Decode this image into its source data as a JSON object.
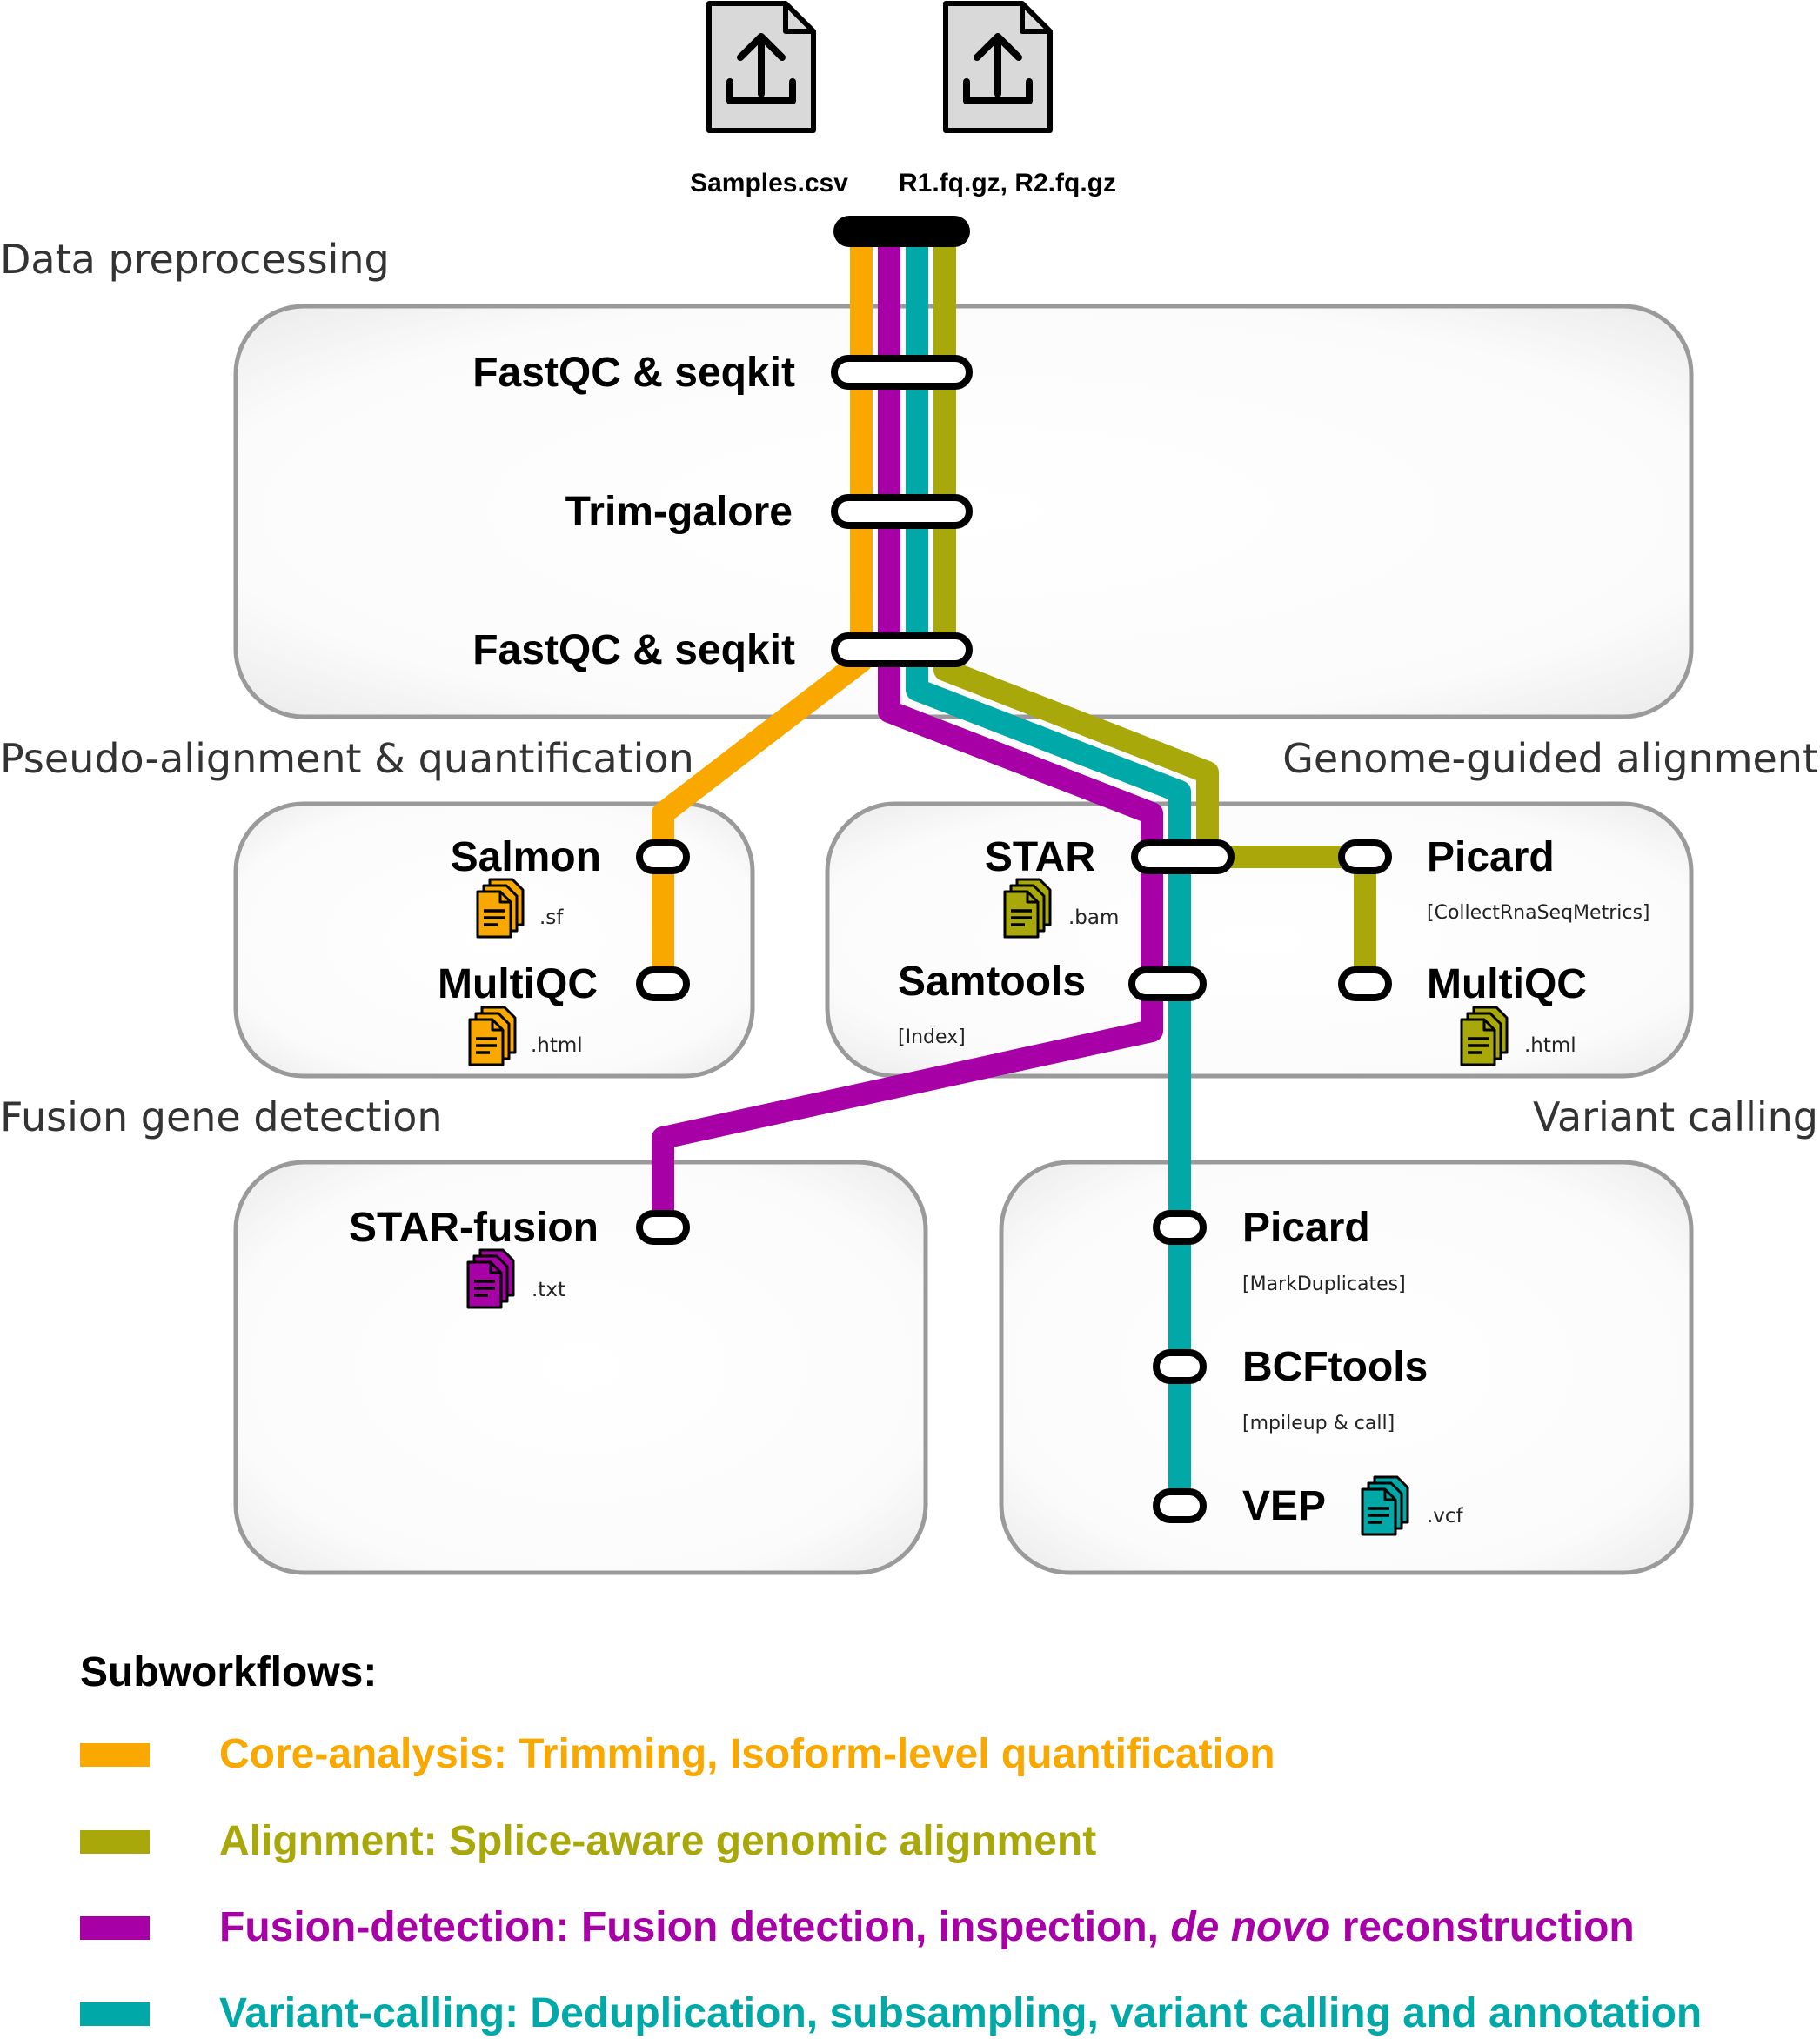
{
  "colors": {
    "core": "#F9A800",
    "alignment": "#A8A80A",
    "fusion": "#A700A7",
    "variant": "#00A8A8",
    "box_fill": "#f7f7f7",
    "box_stroke": "#9a9a9a"
  },
  "inputs": {
    "samples_label": "Samples.csv",
    "reads_label": "R1.fq.gz, R2.fq.gz",
    "icon": "file-upload-icon"
  },
  "sections": {
    "preprocessing": "Data preprocessing",
    "pseudo": "Pseudo-alignment & quantification",
    "genome": "Genome-guided alignment",
    "fusion": "Fusion gene detection",
    "variant": "Variant calling"
  },
  "steps": {
    "fastqc1": "FastQC & seqkit",
    "trim": "Trim-galore",
    "fastqc2": "FastQC & seqkit",
    "salmon": "Salmon",
    "salmon_ext": ".sf",
    "multiqc_pseudo": "MultiQC",
    "multiqc_pseudo_ext": ".html",
    "star": "STAR",
    "star_ext": ".bam",
    "samtools": "Samtools",
    "samtools_sub": "[Index]",
    "picard_rna": "Picard",
    "picard_rna_sub": "[CollectRnaSeqMetrics]",
    "multiqc_genome": "MultiQC",
    "multiqc_genome_ext": ".html",
    "star_fusion": "STAR-fusion",
    "star_fusion_ext": ".txt",
    "picard_dup": "Picard",
    "picard_dup_sub": "[MarkDuplicates]",
    "bcftools": "BCFtools",
    "bcftools_sub": "[mpileup & call]",
    "vep": "VEP",
    "vep_ext": ".vcf"
  },
  "legend": {
    "title": "Subworkflows:",
    "core": "Core-analysis: Trimming, Isoform-level quantification",
    "alignment": "Alignment: Splice-aware genomic alignment",
    "fusion_a": "Fusion-detection: Fusion detection, inspection, ",
    "fusion_b": "de novo",
    "fusion_c": " reconstruction",
    "variant": "Variant-calling: Deduplication, subsampling, variant calling and annotation"
  }
}
